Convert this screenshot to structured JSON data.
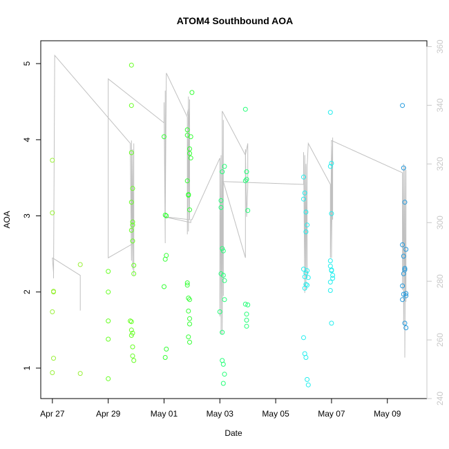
{
  "chart_data": {
    "type": "scatter",
    "title": "ATOM4 Southbound AOA",
    "xlabel": "Date",
    "ylabel": "AOA",
    "x_ticks": [
      "Apr 27",
      "Apr 29",
      "May 01",
      "May 03",
      "May 05",
      "May 07",
      "May 09"
    ],
    "xlim": [
      "2012-04-26T14:00",
      "2012-05-10T10:00"
    ],
    "ylim": [
      0.6,
      5.3
    ],
    "y_ticks": [
      1,
      2,
      3,
      4,
      5
    ],
    "y2lim": [
      240,
      362
    ],
    "y2_ticks": [
      240,
      260,
      280,
      300,
      320,
      340,
      360
    ],
    "grid": false,
    "legend": "none",
    "colors": {
      "axis": "#000000",
      "right_axis": "#c8c8c8",
      "line": "#c0c0c0"
    },
    "series": [
      {
        "color": "#9af03a",
        "points": [
          [
            "2012-04-27T00:00",
            3.73
          ],
          [
            "2012-04-27T00:00",
            3.04
          ],
          [
            "2012-04-27T01:00",
            2.01
          ],
          [
            "2012-04-27T01:00",
            2.0
          ],
          [
            "2012-04-27T00:00",
            1.74
          ],
          [
            "2012-04-27T01:00",
            1.13
          ],
          [
            "2012-04-27T00:00",
            0.94
          ],
          [
            "2012-04-28T00:00",
            2.36
          ],
          [
            "2012-04-28T00:00",
            0.93
          ]
        ]
      },
      {
        "color": "#66ff22",
        "points": [
          [
            "2012-04-29T00:00",
            2.27
          ],
          [
            "2012-04-29T00:00",
            2.0
          ],
          [
            "2012-04-29T00:00",
            1.62
          ],
          [
            "2012-04-29T00:00",
            1.38
          ],
          [
            "2012-04-29T00:00",
            0.86
          ],
          [
            "2012-04-29T20:00",
            4.98
          ],
          [
            "2012-04-29T20:00",
            4.45
          ],
          [
            "2012-04-29T20:00",
            3.83
          ],
          [
            "2012-04-29T21:00",
            3.36
          ],
          [
            "2012-04-29T20:00",
            3.18
          ],
          [
            "2012-04-29T21:00",
            2.92
          ],
          [
            "2012-04-29T21:00",
            2.88
          ],
          [
            "2012-04-29T20:00",
            2.81
          ],
          [
            "2012-04-29T21:00",
            2.67
          ],
          [
            "2012-04-29T22:00",
            2.35
          ],
          [
            "2012-04-29T22:00",
            2.24
          ],
          [
            "2012-04-29T19:00",
            1.62
          ],
          [
            "2012-04-29T20:00",
            1.61
          ],
          [
            "2012-04-29T20:00",
            1.5
          ],
          [
            "2012-04-29T21:00",
            1.46
          ],
          [
            "2012-04-29T20:00",
            1.43
          ],
          [
            "2012-04-29T21:00",
            1.28
          ],
          [
            "2012-04-29T21:00",
            1.16
          ],
          [
            "2012-04-29T22:00",
            1.1
          ]
        ]
      },
      {
        "color": "#33ff33",
        "points": [
          [
            "2012-05-01T00:00",
            4.04
          ],
          [
            "2012-05-01T01:00",
            3.01
          ],
          [
            "2012-05-01T02:00",
            3.0
          ],
          [
            "2012-05-01T02:00",
            2.48
          ],
          [
            "2012-05-01T01:00",
            2.43
          ],
          [
            "2012-05-01T00:00",
            2.07
          ],
          [
            "2012-05-01T02:00",
            1.25
          ],
          [
            "2012-05-01T01:00",
            1.14
          ],
          [
            "2012-05-01T20:00",
            4.13
          ],
          [
            "2012-05-01T20:00",
            4.06
          ],
          [
            "2012-05-01T23:00",
            4.04
          ],
          [
            "2012-05-01T22:00",
            3.88
          ],
          [
            "2012-05-01T22:00",
            3.82
          ],
          [
            "2012-05-01T23:00",
            3.76
          ],
          [
            "2012-05-01T20:00",
            3.46
          ],
          [
            "2012-05-01T21:00",
            3.28
          ],
          [
            "2012-05-01T21:00",
            3.27
          ],
          [
            "2012-05-01T22:00",
            3.08
          ],
          [
            "2012-05-01T20:00",
            2.12
          ],
          [
            "2012-05-01T20:00",
            2.09
          ],
          [
            "2012-05-01T21:00",
            1.92
          ],
          [
            "2012-05-01T22:00",
            1.9
          ],
          [
            "2012-05-01T21:00",
            1.75
          ],
          [
            "2012-05-01T22:00",
            1.65
          ],
          [
            "2012-05-01T22:00",
            1.58
          ],
          [
            "2012-05-01T21:00",
            1.41
          ],
          [
            "2012-05-01T22:00",
            1.34
          ],
          [
            "2012-05-02T00:00",
            4.62
          ]
        ]
      },
      {
        "color": "#22ff77",
        "points": [
          [
            "2012-05-03T04:00",
            3.65
          ],
          [
            "2012-05-03T02:00",
            3.58
          ],
          [
            "2012-05-03T01:00",
            3.2
          ],
          [
            "2012-05-03T01:00",
            3.11
          ],
          [
            "2012-05-03T02:00",
            2.57
          ],
          [
            "2012-05-03T03:00",
            2.54
          ],
          [
            "2012-05-03T01:00",
            2.24
          ],
          [
            "2012-05-03T03:00",
            2.22
          ],
          [
            "2012-05-03T04:00",
            2.15
          ],
          [
            "2012-05-03T04:00",
            1.9
          ],
          [
            "2012-05-03T00:00",
            1.74
          ],
          [
            "2012-05-03T02:00",
            1.47
          ],
          [
            "2012-05-03T02:00",
            1.1
          ],
          [
            "2012-05-03T03:00",
            1.05
          ],
          [
            "2012-05-03T04:00",
            0.92
          ],
          [
            "2012-05-03T03:00",
            0.8
          ],
          [
            "2012-05-03T22:00",
            4.4
          ],
          [
            "2012-05-03T23:00",
            3.58
          ],
          [
            "2012-05-03T23:00",
            3.48
          ],
          [
            "2012-05-03T22:00",
            3.46
          ],
          [
            "2012-05-04T00:00",
            3.07
          ],
          [
            "2012-05-03T22:00",
            1.84
          ],
          [
            "2012-05-04T00:00",
            1.83
          ],
          [
            "2012-05-03T23:00",
            1.71
          ],
          [
            "2012-05-03T23:00",
            1.63
          ],
          [
            "2012-05-03T23:00",
            1.55
          ]
        ]
      },
      {
        "color": "#22eeee",
        "points": [
          [
            "2012-05-06T00:00",
            3.51
          ],
          [
            "2012-05-06T01:00",
            3.3
          ],
          [
            "2012-05-06T00:00",
            3.22
          ],
          [
            "2012-05-06T02:00",
            3.05
          ],
          [
            "2012-05-06T03:00",
            2.88
          ],
          [
            "2012-05-06T02:00",
            2.79
          ],
          [
            "2012-05-06T00:00",
            2.3
          ],
          [
            "2012-05-06T03:00",
            2.28
          ],
          [
            "2012-05-06T02:00",
            2.25
          ],
          [
            "2012-05-06T01:00",
            2.2
          ],
          [
            "2012-05-06T04:00",
            2.19
          ],
          [
            "2012-05-06T02:00",
            2.1
          ],
          [
            "2012-05-06T03:00",
            2.09
          ],
          [
            "2012-05-06T01:00",
            2.05
          ],
          [
            "2012-05-06T00:00",
            1.4
          ],
          [
            "2012-05-06T01:00",
            1.19
          ],
          [
            "2012-05-06T02:00",
            1.14
          ],
          [
            "2012-05-06T03:00",
            0.85
          ],
          [
            "2012-05-06T04:00",
            0.78
          ],
          [
            "2012-05-06T23:00",
            4.36
          ],
          [
            "2012-05-07T00:00",
            3.69
          ],
          [
            "2012-05-06T23:00",
            3.65
          ],
          [
            "2012-05-07T00:00",
            3.03
          ],
          [
            "2012-05-06T23:00",
            2.41
          ],
          [
            "2012-05-06T23:00",
            2.34
          ],
          [
            "2012-05-07T00:00",
            2.29
          ],
          [
            "2012-05-07T00:00",
            2.28
          ],
          [
            "2012-05-07T01:00",
            2.22
          ],
          [
            "2012-05-07T01:00",
            2.18
          ],
          [
            "2012-05-06T23:00",
            2.13
          ],
          [
            "2012-05-06T23:00",
            2.02
          ],
          [
            "2012-05-07T00:00",
            1.59
          ]
        ]
      },
      {
        "color": "#2299dd",
        "points": [
          [
            "2012-05-09T13:00",
            4.45
          ],
          [
            "2012-05-09T14:00",
            3.63
          ],
          [
            "2012-05-09T15:00",
            3.18
          ],
          [
            "2012-05-09T13:00",
            2.62
          ],
          [
            "2012-05-09T16:00",
            2.56
          ],
          [
            "2012-05-09T14:00",
            2.47
          ],
          [
            "2012-05-09T15:00",
            2.31
          ],
          [
            "2012-05-09T15:00",
            2.29
          ],
          [
            "2012-05-09T14:00",
            2.24
          ],
          [
            "2012-05-09T13:00",
            2.08
          ],
          [
            "2012-05-09T16:00",
            1.98
          ],
          [
            "2012-05-09T14:00",
            1.97
          ],
          [
            "2012-05-09T16:00",
            1.95
          ],
          [
            "2012-05-09T13:00",
            1.9
          ],
          [
            "2012-05-09T15:00",
            1.59
          ],
          [
            "2012-05-09T16:00",
            1.53
          ]
        ]
      }
    ],
    "line_series": {
      "axis": "right",
      "points": [
        [
          "2012-04-27T00:00",
          288
        ],
        [
          "2012-04-27T01:00",
          283
        ],
        [
          "2012-04-27T01:00",
          281
        ],
        [
          "2012-04-27T02:00",
          357
        ],
        [
          "2012-04-29T19:00",
          327
        ],
        [
          "2012-04-29T19:00",
          326
        ],
        [
          "2012-04-29T20:00",
          287
        ],
        [
          "2012-04-29T20:00",
          328
        ],
        [
          "2012-04-29T21:00",
          284
        ],
        [
          "2012-04-29T21:00",
          325
        ],
        [
          "2012-04-29T22:00",
          282
        ],
        [
          "2012-04-29T22:00",
          327
        ],
        [
          "2012-04-29T22:00",
          293
        ],
        [
          "2012-04-29T00:00",
          288
        ],
        [
          "2012-04-29T00:00",
          349
        ],
        [
          "2012-05-01T00:00",
          334
        ],
        [
          "2012-05-01T00:00",
          341
        ],
        [
          "2012-05-01T01:00",
          293
        ],
        [
          "2012-05-01T01:00",
          345
        ],
        [
          "2012-05-01T01:00",
          301
        ],
        [
          "2012-05-01T02:00",
          351
        ],
        [
          "2012-05-01T20:00",
          336
        ],
        [
          "2012-05-01T20:00",
          296
        ],
        [
          "2012-05-01T21:00",
          343
        ],
        [
          "2012-05-01T21:00",
          297
        ],
        [
          "2012-05-01T22:00",
          342
        ],
        [
          "2012-05-01T22:00",
          301
        ],
        [
          "2012-05-01T22:00",
          335
        ],
        [
          "2012-05-01T20:00",
          337
        ],
        [
          "2012-05-01T21:00",
          339
        ],
        [
          "2012-05-01T22:00",
          330
        ],
        [
          "2012-05-01T22:00",
          301
        ],
        [
          "2012-05-01T00:00",
          302
        ],
        [
          "2012-05-01T00:00",
          302
        ],
        [
          "2012-05-01T23:00",
          300
        ],
        [
          "2012-05-01T23:00",
          301
        ],
        [
          "2012-05-02T00:00",
          301
        ],
        [
          "2012-05-03T00:00",
          322
        ],
        [
          "2012-05-03T00:00",
          268
        ],
        [
          "2012-05-03T01:00",
          323
        ],
        [
          "2012-05-03T01:00",
          262
        ],
        [
          "2012-05-03T02:00",
          327
        ],
        [
          "2012-05-03T02:00",
          262
        ],
        [
          "2012-05-03T03:00",
          335
        ],
        [
          "2012-05-03T03:00",
          275
        ],
        [
          "2012-05-03T03:00",
          314
        ],
        [
          "2012-05-03T22:00",
          288
        ],
        [
          "2012-05-03T22:00",
          325
        ],
        [
          "2012-05-03T23:00",
          302
        ],
        [
          "2012-05-04T00:00",
          312
        ],
        [
          "2012-05-04T00:00",
          327
        ],
        [
          "2012-05-03T22:00",
          323
        ],
        [
          "2012-05-03T02:00",
          338
        ],
        [
          "2012-05-03T02:00",
          334
        ],
        [
          "2012-05-03T02:00",
          314
        ],
        [
          "2012-05-06T00:00",
          313
        ],
        [
          "2012-05-06T00:00",
          324
        ],
        [
          "2012-05-06T01:00",
          276
        ],
        [
          "2012-05-06T01:00",
          323
        ],
        [
          "2012-05-06T02:00",
          277
        ],
        [
          "2012-05-06T02:00",
          320
        ],
        [
          "2012-05-06T03:00",
          281
        ],
        [
          "2012-05-06T03:00",
          319
        ],
        [
          "2012-05-06T04:00",
          327
        ],
        [
          "2012-05-06T23:00",
          313
        ],
        [
          "2012-05-06T23:00",
          288
        ],
        [
          "2012-05-07T00:00",
          326
        ],
        [
          "2012-05-07T00:00",
          288
        ],
        [
          "2012-05-07T01:00",
          329
        ],
        [
          "2012-05-07T01:00",
          301
        ],
        [
          "2012-05-07T00:00",
          328
        ],
        [
          "2012-05-09T13:00",
          317
        ],
        [
          "2012-05-09T13:00",
          277
        ],
        [
          "2012-05-09T14:00",
          320
        ],
        [
          "2012-05-09T14:00",
          265
        ],
        [
          "2012-05-09T15:00",
          319
        ],
        [
          "2012-05-09T15:00",
          254
        ],
        [
          "2012-05-09T16:00",
          318
        ],
        [
          "2012-05-09T16:00",
          273
        ]
      ],
      "short_segment": [
        [
          "2012-04-27T00:00",
          288
        ],
        [
          "2012-04-28T00:00",
          282
        ],
        [
          "2012-04-28T00:00",
          270
        ]
      ]
    }
  }
}
